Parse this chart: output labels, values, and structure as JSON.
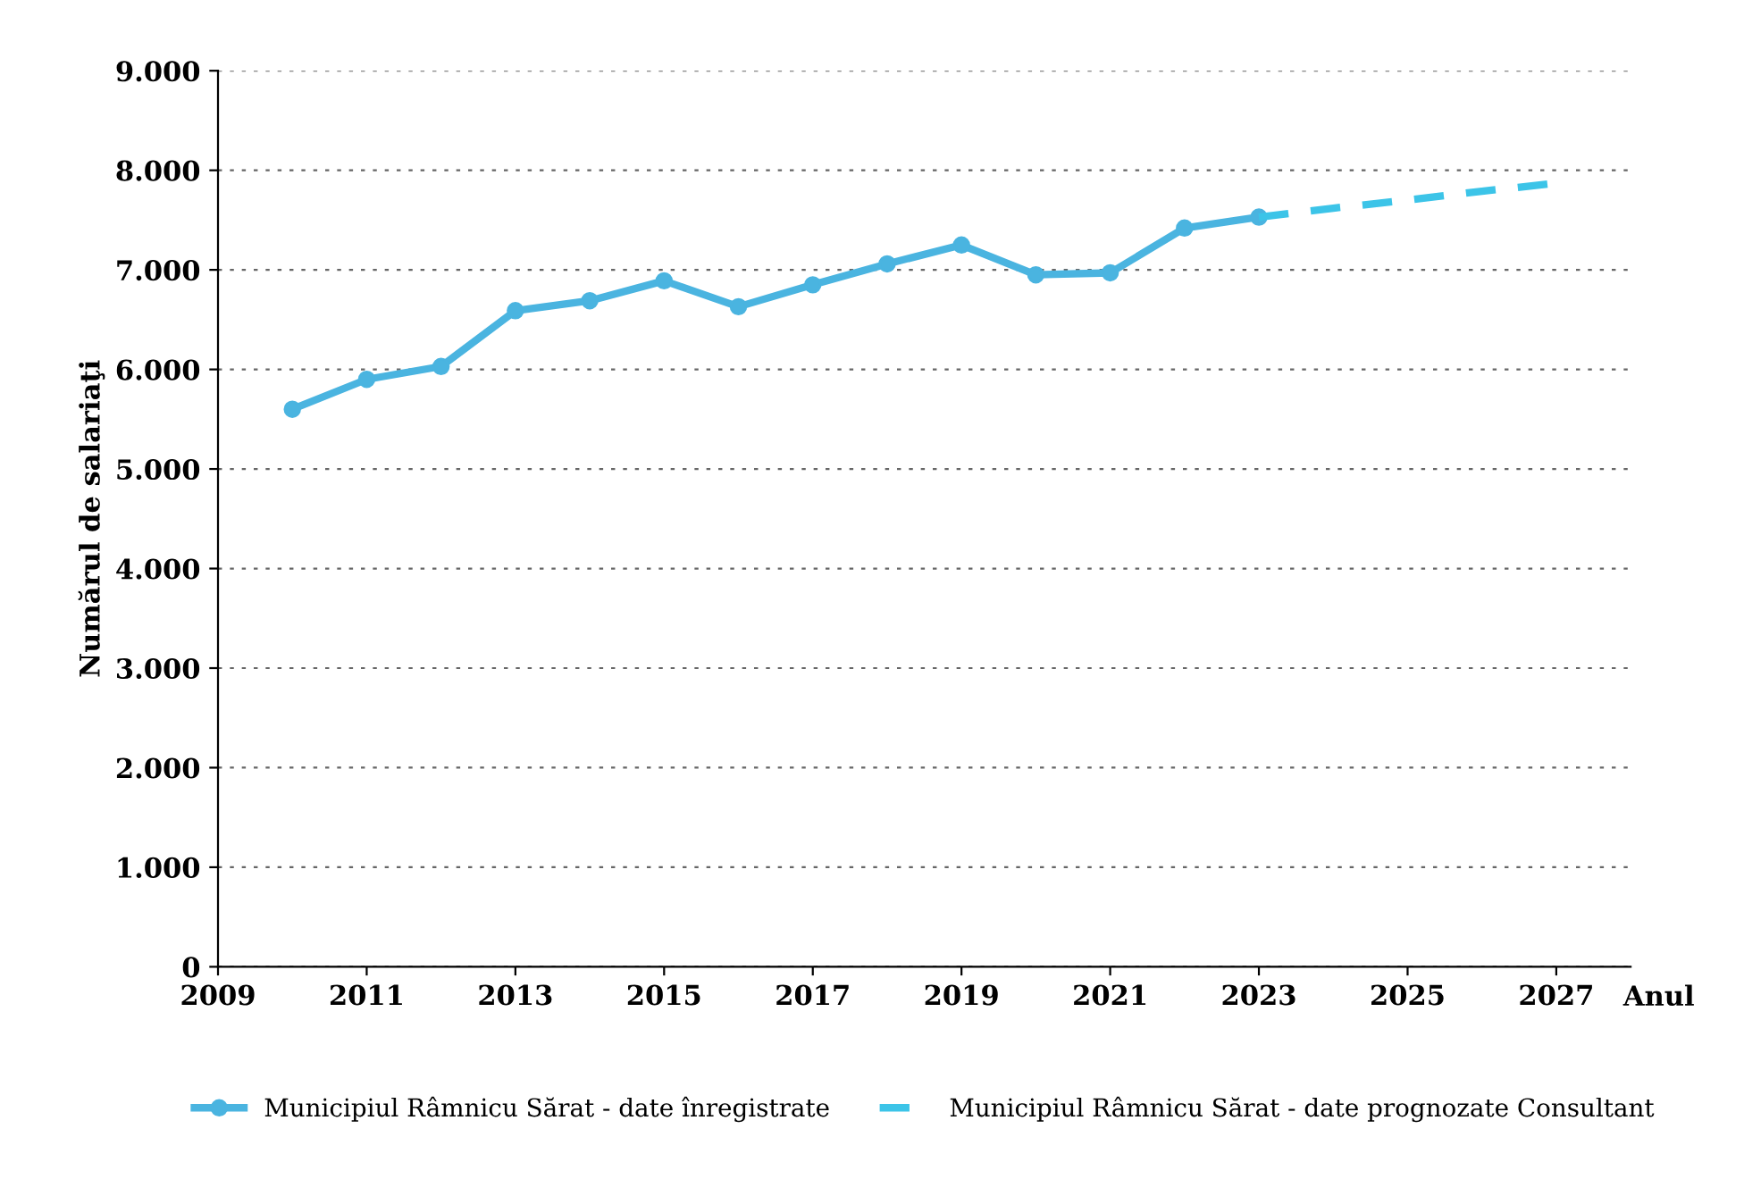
{
  "chart_data": {
    "type": "line",
    "ylabel": "Numărul de salariaţi",
    "xlabel": "Anul",
    "xlim": [
      2009,
      2028
    ],
    "xticks": [
      2009,
      2011,
      2013,
      2015,
      2017,
      2019,
      2021,
      2023,
      2025,
      2027
    ],
    "ylim": [
      0,
      9000
    ],
    "yticks": [
      {
        "value": 0,
        "label": "0"
      },
      {
        "value": 1000,
        "label": "1.000"
      },
      {
        "value": 2000,
        "label": "2.000"
      },
      {
        "value": 3000,
        "label": "3.000"
      },
      {
        "value": 4000,
        "label": "4.000"
      },
      {
        "value": 5000,
        "label": "5.000"
      },
      {
        "value": 6000,
        "label": "6.000"
      },
      {
        "value": 7000,
        "label": "7.000"
      },
      {
        "value": 8000,
        "label": "8.000"
      },
      {
        "value": 9000,
        "label": "9.000"
      }
    ],
    "grid": "y",
    "legend": "bottom",
    "series": [
      {
        "name": "Municipiul Râmnicu Sărat - date înregistrate",
        "color": "#4ab4e0",
        "marker": "circle",
        "line_style": "solid",
        "x": [
          2010,
          2011,
          2012,
          2013,
          2014,
          2015,
          2016,
          2017,
          2018,
          2019,
          2020,
          2021,
          2022,
          2023
        ],
        "values": [
          5600,
          5900,
          6030,
          6590,
          6690,
          6890,
          6630,
          6850,
          7060,
          7250,
          6950,
          6970,
          7420,
          7530
        ]
      },
      {
        "name": "Municipiul Râmnicu Sărat - date prognozate Consultant",
        "color": "#3cc4e8",
        "marker": "none",
        "line_style": "dashed",
        "x": [
          2023,
          2024,
          2025,
          2026,
          2027
        ],
        "values": [
          7530,
          7620,
          7700,
          7790,
          7870
        ]
      }
    ]
  }
}
